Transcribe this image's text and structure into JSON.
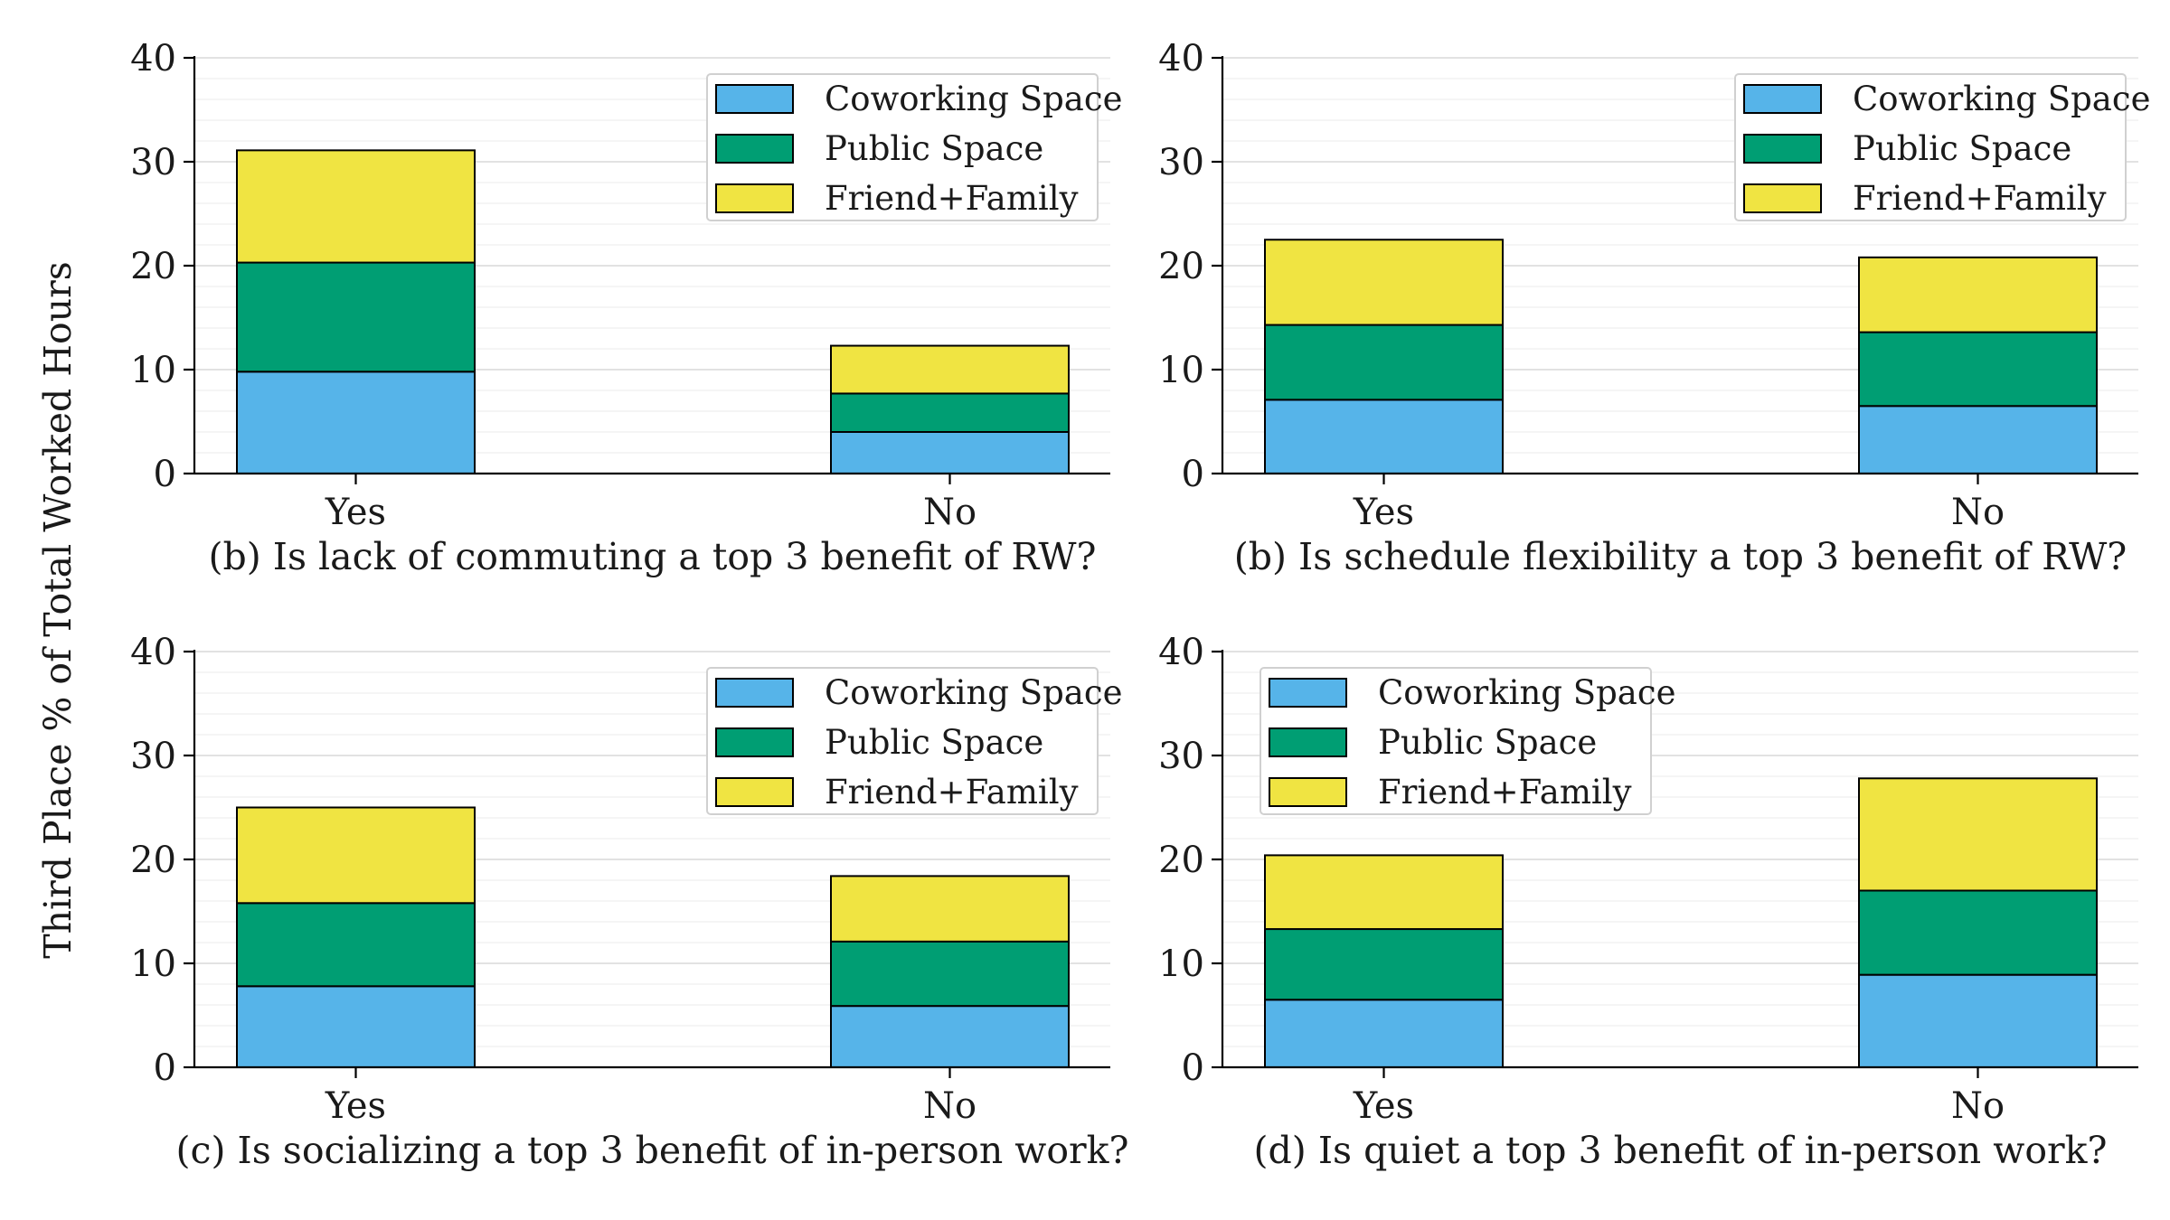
{
  "figure": {
    "ylabel": "Third Place % of Total Worked Hours",
    "colors": {
      "coworking": "#56b4e9",
      "public": "#009e73",
      "friend_family": "#f0e442"
    }
  },
  "chart_data": [
    {
      "type": "bar",
      "stacked": true,
      "title": "(b) Is lack of commuting a top 3 benefit of RW?",
      "categories": [
        "Yes",
        "No"
      ],
      "series": [
        {
          "name": "Coworking Space",
          "values": [
            9.8,
            4.0
          ]
        },
        {
          "name": "Public Space",
          "values": [
            10.5,
            3.7
          ]
        },
        {
          "name": "Friend+Family",
          "values": [
            10.8,
            4.6
          ]
        }
      ],
      "ylim": [
        0,
        40
      ],
      "yticks": [
        "0",
        "10",
        "20",
        "30",
        "40"
      ],
      "legend": "top-right"
    },
    {
      "type": "bar",
      "stacked": true,
      "title": "(b) Is schedule flexibility a top 3 benefit of RW?",
      "categories": [
        "Yes",
        "No"
      ],
      "series": [
        {
          "name": "Coworking Space",
          "values": [
            7.1,
            6.5
          ]
        },
        {
          "name": "Public Space",
          "values": [
            7.2,
            7.1
          ]
        },
        {
          "name": "Friend+Family",
          "values": [
            8.2,
            7.2
          ]
        }
      ],
      "ylim": [
        0,
        40
      ],
      "yticks": [
        "0",
        "10",
        "20",
        "30",
        "40"
      ],
      "legend": "top-right"
    },
    {
      "type": "bar",
      "stacked": true,
      "title": "(c) Is socializing a top 3 benefit of in-person work?",
      "categories": [
        "Yes",
        "No"
      ],
      "series": [
        {
          "name": "Coworking Space",
          "values": [
            7.8,
            5.9
          ]
        },
        {
          "name": "Public Space",
          "values": [
            8.0,
            6.2
          ]
        },
        {
          "name": "Friend+Family",
          "values": [
            9.2,
            6.3
          ]
        }
      ],
      "ylim": [
        0,
        40
      ],
      "yticks": [
        "0",
        "10",
        "20",
        "30",
        "40"
      ],
      "legend": "top-right"
    },
    {
      "type": "bar",
      "stacked": true,
      "title": "(d) Is quiet a top 3 benefit of in-person work?",
      "categories": [
        "Yes",
        "No"
      ],
      "series": [
        {
          "name": "Coworking Space",
          "values": [
            6.5,
            8.9
          ]
        },
        {
          "name": "Public Space",
          "values": [
            6.8,
            8.1
          ]
        },
        {
          "name": "Friend+Family",
          "values": [
            7.1,
            10.8
          ]
        }
      ],
      "ylim": [
        0,
        40
      ],
      "yticks": [
        "0",
        "10",
        "20",
        "30",
        "40"
      ],
      "legend": "top-left"
    }
  ]
}
